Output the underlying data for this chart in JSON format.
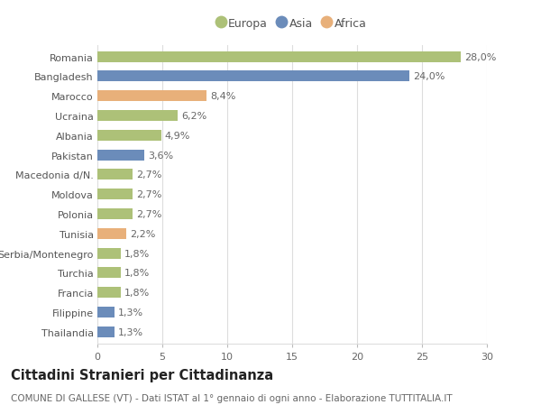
{
  "countries": [
    "Romania",
    "Bangladesh",
    "Marocco",
    "Ucraina",
    "Albania",
    "Pakistan",
    "Macedonia d/N.",
    "Moldova",
    "Polonia",
    "Tunisia",
    "Serbia/Montenegro",
    "Turchia",
    "Francia",
    "Filippine",
    "Thailandia"
  ],
  "values": [
    28.0,
    24.0,
    8.4,
    6.2,
    4.9,
    3.6,
    2.7,
    2.7,
    2.7,
    2.2,
    1.8,
    1.8,
    1.8,
    1.3,
    1.3
  ],
  "labels": [
    "28,0%",
    "24,0%",
    "8,4%",
    "6,2%",
    "4,9%",
    "3,6%",
    "2,7%",
    "2,7%",
    "2,7%",
    "2,2%",
    "1,8%",
    "1,8%",
    "1,8%",
    "1,3%",
    "1,3%"
  ],
  "continents": [
    "Europa",
    "Asia",
    "Africa",
    "Europa",
    "Europa",
    "Asia",
    "Europa",
    "Europa",
    "Europa",
    "Africa",
    "Europa",
    "Europa",
    "Europa",
    "Asia",
    "Asia"
  ],
  "colors": {
    "Europa": "#adc178",
    "Asia": "#6b8cba",
    "Africa": "#e8b07a"
  },
  "xlim": [
    0,
    30
  ],
  "xticks": [
    0,
    5,
    10,
    15,
    20,
    25,
    30
  ],
  "title": "Cittadini Stranieri per Cittadinanza",
  "subtitle": "COMUNE DI GALLESE (VT) - Dati ISTAT al 1° gennaio di ogni anno - Elaborazione TUTTITALIA.IT",
  "background_color": "#ffffff",
  "grid_color": "#dddddd",
  "bar_height": 0.55,
  "label_fontsize": 8,
  "tick_fontsize": 8,
  "title_fontsize": 10.5,
  "subtitle_fontsize": 7.5,
  "legend_fontsize": 9
}
